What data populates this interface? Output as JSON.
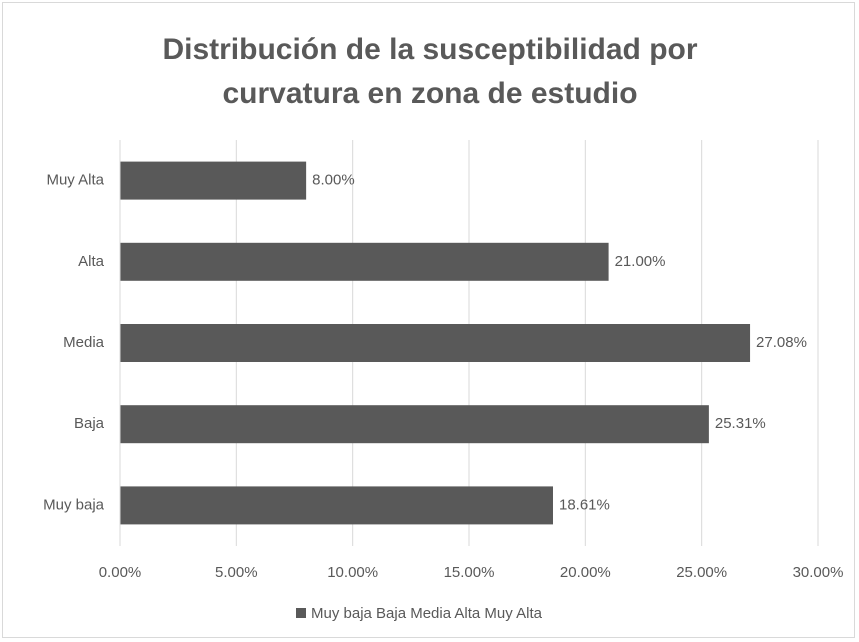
{
  "chart_data": {
    "type": "barh",
    "title": "Distribución de la susceptibilidad por curvatura en zona de estudio",
    "categories": [
      "Muy Alta",
      "Alta",
      "Media",
      "Baja",
      "Muy baja"
    ],
    "series": [
      {
        "name": "Muy baja Baja Media Alta Muy Alta",
        "color": "#595959",
        "values": [
          8,
          21,
          27.08,
          25.31,
          18.61
        ],
        "value_labels": [
          "8.00%",
          "21.00%",
          "27.08%",
          "25.31%",
          "18.61%"
        ]
      }
    ],
    "xlim": [
      0,
      30
    ],
    "xticks": [
      {
        "value": 0,
        "label": "0.00%"
      },
      {
        "value": 5,
        "label": "5.00%"
      },
      {
        "value": 10,
        "label": "10.00%"
      },
      {
        "value": 15,
        "label": "15.00%"
      },
      {
        "value": 20,
        "label": "20.00%"
      },
      {
        "value": 25,
        "label": "25.00%"
      },
      {
        "value": 30,
        "label": "30.00%"
      }
    ],
    "grid": true,
    "legend": "bottom"
  }
}
